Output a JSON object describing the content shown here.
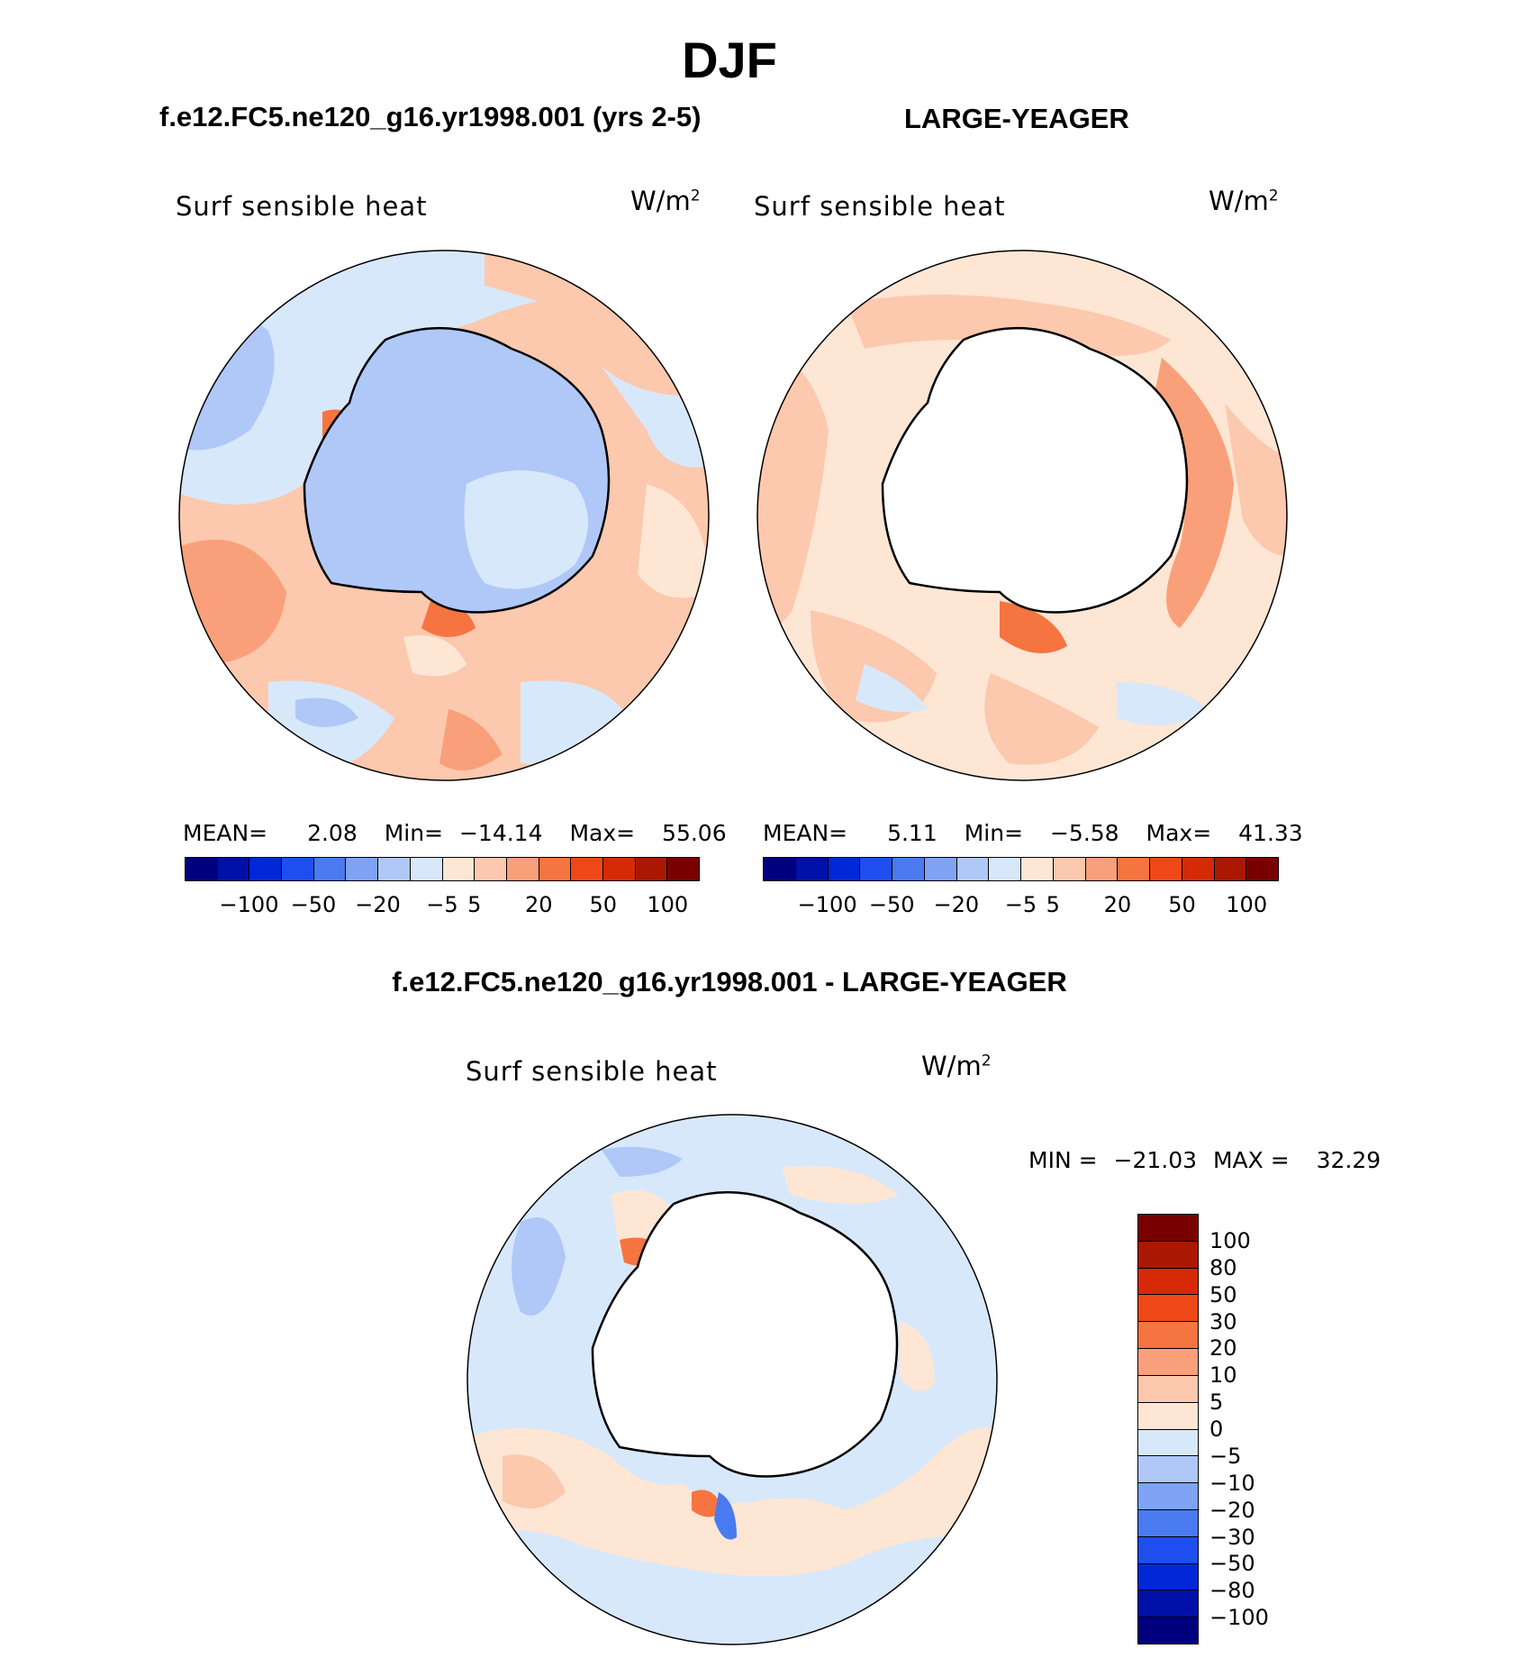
{
  "figure": {
    "season": "DJF"
  },
  "panels": [
    {
      "title": "f.e12.FC5.ne120_g16.yr1998.001 (yrs 2-5)",
      "variable": "Surf sensible heat",
      "units": "W/m",
      "units_exp": "2",
      "stats": {
        "mean_label": "MEAN=",
        "mean": "2.08",
        "min_label": "Min=",
        "min": "−14.14",
        "max_label": "Max=",
        "max": "55.06"
      },
      "colorbar": {
        "colors": [
          "#00007f",
          "#0010a8",
          "#0028d8",
          "#1e4ef0",
          "#4a7af0",
          "#7ea2f4",
          "#b0c8f8",
          "#d8e8fb",
          "#fde6d4",
          "#fcc8ae",
          "#f9a07a",
          "#f67440",
          "#ef4818",
          "#d62a06",
          "#aa1804",
          "#7a0000"
        ],
        "ticks": [
          "−100",
          "−50",
          "−20",
          "−5",
          "5",
          "20",
          "50",
          "100"
        ]
      }
    },
    {
      "title": "LARGE-YEAGER",
      "variable": "Surf sensible heat",
      "units": "W/m",
      "units_exp": "2",
      "stats": {
        "mean_label": "MEAN=",
        "mean": "5.11",
        "min_label": "Min=",
        "min": "−5.58",
        "max_label": "Max=",
        "max": "41.33"
      },
      "colorbar": {
        "colors": [
          "#00007f",
          "#0010a8",
          "#0028d8",
          "#1e4ef0",
          "#4a7af0",
          "#7ea2f4",
          "#b0c8f8",
          "#d8e8fb",
          "#fde6d4",
          "#fcc8ae",
          "#f9a07a",
          "#f67440",
          "#ef4818",
          "#d62a06",
          "#aa1804",
          "#7a0000"
        ],
        "ticks": [
          "−100",
          "−50",
          "−20",
          "−5",
          "5",
          "20",
          "50",
          "100"
        ]
      }
    },
    {
      "title": "f.e12.FC5.ne120_g16.yr1998.001 - LARGE-YEAGER",
      "variable": "Surf sensible heat",
      "units": "W/m",
      "units_exp": "2",
      "stats": {
        "min_label": "MIN =",
        "min": "−21.03",
        "max_label": "MAX =",
        "max": "32.29"
      },
      "colorbar": {
        "colors": [
          "#7a0000",
          "#aa1804",
          "#d62a06",
          "#ef4818",
          "#f67440",
          "#f9a07a",
          "#fcc8ae",
          "#fde6d4",
          "#d8e8fb",
          "#b0c8f8",
          "#7ea2f4",
          "#4a7af0",
          "#1e4ef0",
          "#0028d8",
          "#0010a8",
          "#00007f"
        ],
        "ticks": [
          "100",
          "80",
          "50",
          "30",
          "20",
          "10",
          "5",
          "0",
          "−5",
          "−10",
          "−20",
          "−30",
          "−50",
          "−80",
          "−100"
        ]
      }
    }
  ]
}
